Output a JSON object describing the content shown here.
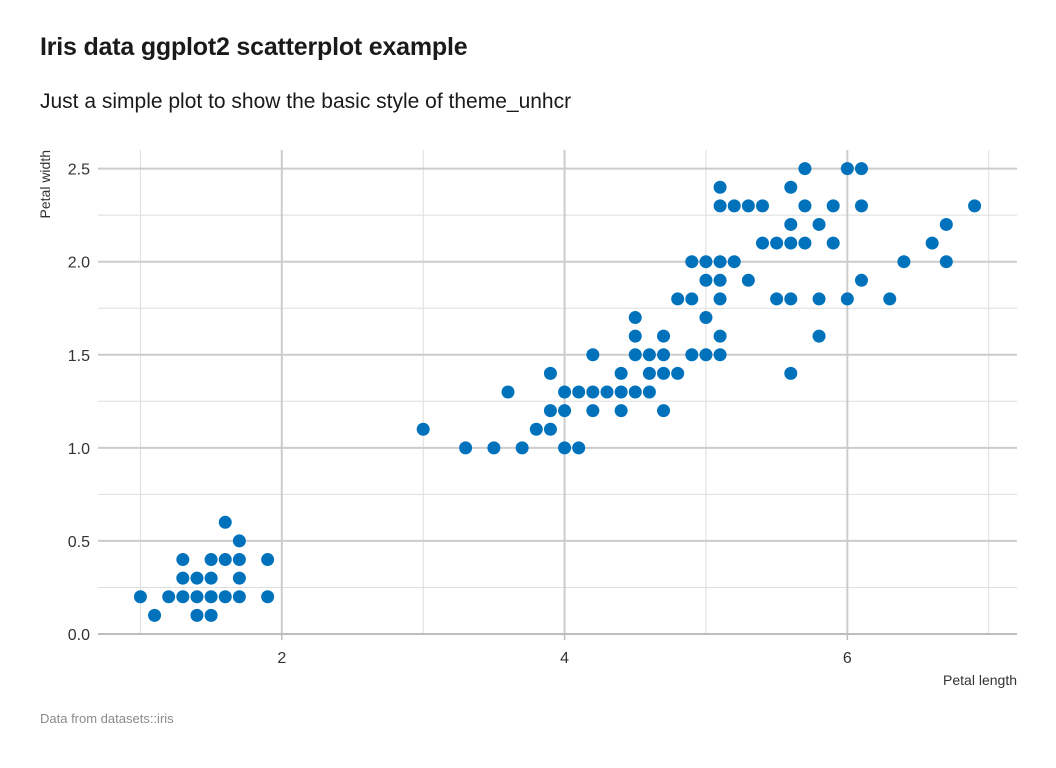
{
  "title": "Iris data ggplot2 scatterplot example",
  "subtitle": "Just a simple plot to show the basic style of theme_unhcr",
  "caption": "Data from datasets::iris",
  "colors": {
    "point": "#0072BC",
    "major_grid": "#cccccc",
    "minor_grid": "#dedede",
    "axis": "#bdbdbd"
  },
  "chart_data": {
    "type": "scatter",
    "xlabel": "Petal length",
    "ylabel": "Petal width",
    "xlim": [
      0.7,
      7.2
    ],
    "ylim": [
      0,
      2.6
    ],
    "x_ticks": [
      2,
      4,
      6
    ],
    "y_ticks": [
      0.0,
      0.5,
      1.0,
      1.5,
      2.0,
      2.5
    ],
    "x_tick_labels": [
      "2",
      "4",
      "6"
    ],
    "y_tick_labels": [
      "0.0",
      "0.5",
      "1.0",
      "1.5",
      "2.0",
      "2.5"
    ],
    "grid": true,
    "points": [
      [
        1.0,
        0.2
      ],
      [
        1.1,
        0.1
      ],
      [
        1.2,
        0.2
      ],
      [
        1.3,
        0.2
      ],
      [
        1.3,
        0.3
      ],
      [
        1.3,
        0.4
      ],
      [
        1.4,
        0.1
      ],
      [
        1.4,
        0.2
      ],
      [
        1.4,
        0.3
      ],
      [
        1.5,
        0.1
      ],
      [
        1.5,
        0.2
      ],
      [
        1.5,
        0.3
      ],
      [
        1.5,
        0.4
      ],
      [
        1.6,
        0.2
      ],
      [
        1.6,
        0.4
      ],
      [
        1.6,
        0.6
      ],
      [
        1.7,
        0.2
      ],
      [
        1.7,
        0.3
      ],
      [
        1.7,
        0.4
      ],
      [
        1.7,
        0.5
      ],
      [
        1.9,
        0.2
      ],
      [
        1.9,
        0.4
      ],
      [
        3.0,
        1.1
      ],
      [
        3.3,
        1.0
      ],
      [
        3.5,
        1.0
      ],
      [
        3.6,
        1.3
      ],
      [
        3.7,
        1.0
      ],
      [
        3.8,
        1.1
      ],
      [
        3.9,
        1.1
      ],
      [
        3.9,
        1.2
      ],
      [
        3.9,
        1.4
      ],
      [
        4.0,
        1.0
      ],
      [
        4.0,
        1.2
      ],
      [
        4.0,
        1.3
      ],
      [
        4.1,
        1.0
      ],
      [
        4.1,
        1.3
      ],
      [
        4.2,
        1.2
      ],
      [
        4.2,
        1.3
      ],
      [
        4.2,
        1.5
      ],
      [
        4.3,
        1.3
      ],
      [
        4.4,
        1.2
      ],
      [
        4.4,
        1.3
      ],
      [
        4.4,
        1.4
      ],
      [
        4.5,
        1.3
      ],
      [
        4.5,
        1.5
      ],
      [
        4.5,
        1.6
      ],
      [
        4.5,
        1.7
      ],
      [
        4.6,
        1.3
      ],
      [
        4.6,
        1.4
      ],
      [
        4.6,
        1.5
      ],
      [
        4.7,
        1.2
      ],
      [
        4.7,
        1.4
      ],
      [
        4.7,
        1.5
      ],
      [
        4.7,
        1.6
      ],
      [
        4.8,
        1.4
      ],
      [
        4.8,
        1.8
      ],
      [
        4.9,
        1.5
      ],
      [
        4.9,
        1.8
      ],
      [
        4.9,
        2.0
      ],
      [
        5.0,
        1.5
      ],
      [
        5.0,
        1.7
      ],
      [
        5.0,
        1.9
      ],
      [
        5.0,
        2.0
      ],
      [
        5.1,
        1.5
      ],
      [
        5.1,
        1.6
      ],
      [
        5.1,
        1.8
      ],
      [
        5.1,
        1.9
      ],
      [
        5.1,
        2.0
      ],
      [
        5.1,
        2.3
      ],
      [
        5.1,
        2.4
      ],
      [
        5.2,
        2.0
      ],
      [
        5.2,
        2.3
      ],
      [
        5.3,
        1.9
      ],
      [
        5.3,
        2.3
      ],
      [
        5.4,
        2.1
      ],
      [
        5.4,
        2.3
      ],
      [
        5.5,
        1.8
      ],
      [
        5.5,
        2.1
      ],
      [
        5.6,
        1.4
      ],
      [
        5.6,
        1.8
      ],
      [
        5.6,
        2.1
      ],
      [
        5.6,
        2.2
      ],
      [
        5.6,
        2.4
      ],
      [
        5.7,
        2.1
      ],
      [
        5.7,
        2.3
      ],
      [
        5.7,
        2.5
      ],
      [
        5.8,
        1.6
      ],
      [
        5.8,
        1.8
      ],
      [
        5.8,
        2.2
      ],
      [
        5.9,
        2.1
      ],
      [
        5.9,
        2.3
      ],
      [
        6.0,
        1.8
      ],
      [
        6.0,
        2.5
      ],
      [
        6.1,
        1.9
      ],
      [
        6.1,
        2.3
      ],
      [
        6.1,
        2.5
      ],
      [
        6.3,
        1.8
      ],
      [
        6.4,
        2.0
      ],
      [
        6.6,
        2.1
      ],
      [
        6.7,
        2.0
      ],
      [
        6.7,
        2.2
      ],
      [
        6.9,
        2.3
      ]
    ]
  }
}
